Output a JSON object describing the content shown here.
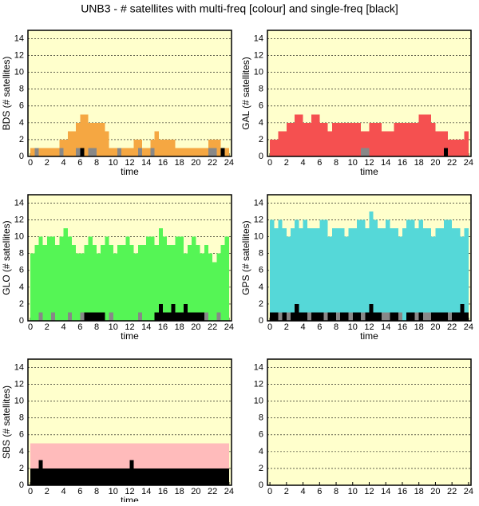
{
  "title": "UNB3 - # satellites with multi-freq [colour] and single-freq [black]",
  "chart_data": [
    {
      "type": "bar",
      "ylabel": "BDS (# satellites)",
      "xlabel": "time",
      "xlim": [
        -0.3,
        24.3
      ],
      "ylim": [
        0,
        15
      ],
      "xticks": [
        0,
        2,
        4,
        6,
        8,
        10,
        12,
        14,
        16,
        18,
        20,
        22,
        24
      ],
      "yticks": [
        0,
        2,
        4,
        6,
        8,
        10,
        12,
        14
      ],
      "grid": true,
      "x": [
        0,
        0.5,
        1,
        1.5,
        2,
        2.5,
        3,
        3.5,
        4,
        4.5,
        5,
        5.5,
        6,
        6.5,
        7,
        7.5,
        8,
        8.5,
        9,
        9.5,
        10,
        10.5,
        11,
        11.5,
        12,
        12.5,
        13,
        13.5,
        14,
        14.5,
        15,
        15.5,
        16,
        16.5,
        17,
        17.5,
        18,
        18.5,
        19,
        19.5,
        20,
        20.5,
        21,
        21.5,
        22,
        22.5,
        23,
        23.5
      ],
      "series": [
        {
          "color": "#f5a742",
          "values": [
            1,
            1,
            1,
            1,
            1,
            1,
            1,
            2,
            2,
            3,
            3,
            4,
            5,
            5,
            4,
            4,
            4,
            4,
            3,
            1,
            1,
            1,
            1,
            1,
            1,
            2,
            2,
            1,
            1,
            2,
            3,
            2,
            2,
            2,
            2,
            1,
            1,
            1,
            1,
            1,
            1,
            1,
            1,
            2,
            2,
            2,
            1,
            1
          ]
        },
        {
          "color": "#888888",
          "values": [
            0,
            1,
            0,
            0,
            0,
            0,
            0,
            1,
            0,
            0,
            0,
            1,
            1,
            0,
            1,
            1,
            0,
            0,
            0,
            0,
            0,
            1,
            0,
            0,
            0,
            0,
            1,
            0,
            0,
            1,
            0,
            0,
            0,
            0,
            0,
            0,
            0,
            0,
            0,
            0,
            0,
            0,
            0,
            1,
            1,
            0,
            1,
            0
          ]
        },
        {
          "color": "#000000",
          "values": [
            0,
            0,
            0,
            0,
            0,
            0,
            0,
            0,
            0,
            0,
            0,
            0,
            1,
            0,
            0,
            0,
            0,
            0,
            0,
            0,
            0,
            0,
            0,
            0,
            0,
            0,
            0,
            0,
            0,
            0,
            0,
            0,
            0,
            0,
            0,
            0,
            0,
            0,
            0,
            0,
            0,
            0,
            0,
            0,
            0,
            0,
            1,
            0
          ]
        }
      ]
    },
    {
      "type": "bar",
      "ylabel": "GAL (# satellites)",
      "xlabel": "time",
      "xlim": [
        -0.3,
        24.3
      ],
      "ylim": [
        0,
        15
      ],
      "xticks": [
        0,
        2,
        4,
        6,
        8,
        10,
        12,
        14,
        16,
        18,
        20,
        22,
        24
      ],
      "yticks": [
        0,
        2,
        4,
        6,
        8,
        10,
        12,
        14
      ],
      "grid": true,
      "x": [
        0,
        0.5,
        1,
        1.5,
        2,
        2.5,
        3,
        3.5,
        4,
        4.5,
        5,
        5.5,
        6,
        6.5,
        7,
        7.5,
        8,
        8.5,
        9,
        9.5,
        10,
        10.5,
        11,
        11.5,
        12,
        12.5,
        13,
        13.5,
        14,
        14.5,
        15,
        15.5,
        16,
        16.5,
        17,
        17.5,
        18,
        18.5,
        19,
        19.5,
        20,
        20.5,
        21,
        21.5,
        22,
        22.5,
        23,
        23.5
      ],
      "series": [
        {
          "color": "#f55050",
          "values": [
            2,
            2,
            3,
            3,
            4,
            4,
            5,
            5,
            4,
            4,
            5,
            5,
            4,
            4,
            3,
            4,
            4,
            4,
            4,
            4,
            4,
            4,
            3,
            3,
            4,
            4,
            4,
            3,
            3,
            3,
            4,
            4,
            4,
            4,
            4,
            4,
            5,
            5,
            5,
            4,
            3,
            3,
            3,
            2,
            2,
            2,
            2,
            3
          ]
        },
        {
          "color": "#888888",
          "values": [
            0,
            0,
            0,
            0,
            0,
            0,
            0,
            0,
            0,
            0,
            0,
            0,
            0,
            0,
            0,
            0,
            0,
            0,
            0,
            0,
            0,
            0,
            1,
            1,
            0,
            0,
            0,
            0,
            0,
            0,
            0,
            0,
            0,
            0,
            0,
            0,
            0,
            0,
            0,
            0,
            0,
            0,
            0,
            0,
            0,
            0,
            0,
            0
          ]
        },
        {
          "color": "#000000",
          "values": [
            0,
            0,
            0,
            0,
            0,
            0,
            0,
            0,
            0,
            0,
            0,
            0,
            0,
            0,
            0,
            0,
            0,
            0,
            0,
            0,
            0,
            0,
            0,
            0,
            0,
            0,
            0,
            0,
            0,
            0,
            0,
            0,
            0,
            0,
            0,
            0,
            0,
            0,
            0,
            0,
            0,
            0,
            1,
            0,
            0,
            0,
            0,
            0
          ]
        }
      ]
    },
    {
      "type": "bar",
      "ylabel": "GLO (# satellites)",
      "xlabel": "time",
      "xlim": [
        -0.3,
        24.3
      ],
      "ylim": [
        0,
        15
      ],
      "xticks": [
        0,
        2,
        4,
        6,
        8,
        10,
        12,
        14,
        16,
        18,
        20,
        22,
        24
      ],
      "yticks": [
        0,
        2,
        4,
        6,
        8,
        10,
        12,
        14
      ],
      "grid": true,
      "x": [
        0,
        0.5,
        1,
        1.5,
        2,
        2.5,
        3,
        3.5,
        4,
        4.5,
        5,
        5.5,
        6,
        6.5,
        7,
        7.5,
        8,
        8.5,
        9,
        9.5,
        10,
        10.5,
        11,
        11.5,
        12,
        12.5,
        13,
        13.5,
        14,
        14.5,
        15,
        15.5,
        16,
        16.5,
        17,
        17.5,
        18,
        18.5,
        19,
        19.5,
        20,
        20.5,
        21,
        21.5,
        22,
        22.5,
        23,
        23.5
      ],
      "series": [
        {
          "color": "#55f555",
          "values": [
            8,
            9,
            10,
            9,
            10,
            10,
            9,
            10,
            11,
            10,
            9,
            8,
            8,
            9,
            10,
            9,
            8,
            9,
            10,
            9,
            8,
            9,
            9,
            10,
            9,
            8,
            9,
            9,
            10,
            10,
            9,
            11,
            10,
            9,
            9,
            10,
            10,
            8,
            9,
            10,
            9,
            8,
            9,
            8,
            7,
            8,
            9,
            10
          ]
        },
        {
          "color": "#888888",
          "values": [
            0,
            0,
            1,
            0,
            0,
            1,
            0,
            0,
            0,
            1,
            0,
            0,
            1,
            0,
            0,
            0,
            0,
            0,
            0,
            1,
            0,
            0,
            0,
            0,
            0,
            0,
            1,
            0,
            0,
            0,
            0,
            0,
            0,
            0,
            0,
            0,
            0,
            0,
            0,
            0,
            0,
            0,
            1,
            0,
            0,
            1,
            0,
            0
          ]
        },
        {
          "color": "#000000",
          "values": [
            0,
            0,
            0,
            0,
            0,
            0,
            0,
            0,
            0,
            0,
            0,
            0,
            0,
            1,
            1,
            1,
            1,
            1,
            0,
            0,
            0,
            0,
            0,
            0,
            0,
            0,
            0,
            0,
            0,
            0,
            1,
            2,
            1,
            1,
            2,
            1,
            1,
            2,
            1,
            1,
            1,
            1,
            0,
            0,
            0,
            0,
            0,
            0
          ]
        }
      ]
    },
    {
      "type": "bar",
      "ylabel": "GPS (# satellites)",
      "xlabel": "time",
      "xlim": [
        -0.3,
        24.3
      ],
      "ylim": [
        0,
        15
      ],
      "xticks": [
        0,
        2,
        4,
        6,
        8,
        10,
        12,
        14,
        16,
        18,
        20,
        22,
        24
      ],
      "yticks": [
        0,
        2,
        4,
        6,
        8,
        10,
        12,
        14
      ],
      "grid": true,
      "x": [
        0,
        0.5,
        1,
        1.5,
        2,
        2.5,
        3,
        3.5,
        4,
        4.5,
        5,
        5.5,
        6,
        6.5,
        7,
        7.5,
        8,
        8.5,
        9,
        9.5,
        10,
        10.5,
        11,
        11.5,
        12,
        12.5,
        13,
        13.5,
        14,
        14.5,
        15,
        15.5,
        16,
        16.5,
        17,
        17.5,
        18,
        18.5,
        19,
        19.5,
        20,
        20.5,
        21,
        21.5,
        22,
        22.5,
        23,
        23.5
      ],
      "series": [
        {
          "color": "#55d8d8",
          "values": [
            12,
            11,
            12,
            11,
            10,
            11,
            12,
            11,
            12,
            11,
            11,
            11,
            12,
            12,
            10,
            11,
            11,
            11,
            10,
            11,
            11,
            12,
            12,
            11,
            13,
            12,
            11,
            11,
            12,
            11,
            11,
            10,
            11,
            12,
            12,
            11,
            12,
            11,
            11,
            10,
            11,
            11,
            12,
            12,
            11,
            11,
            10,
            11
          ]
        },
        {
          "color": "#888888",
          "values": [
            0,
            0,
            1,
            0,
            1,
            0,
            0,
            0,
            0,
            1,
            0,
            0,
            0,
            1,
            0,
            0,
            1,
            0,
            0,
            1,
            0,
            0,
            1,
            0,
            0,
            0,
            0,
            1,
            1,
            0,
            0,
            1,
            0,
            0,
            0,
            1,
            0,
            1,
            1,
            0,
            0,
            0,
            0,
            1,
            0,
            0,
            0,
            0
          ]
        },
        {
          "color": "#000000",
          "values": [
            1,
            1,
            0,
            1,
            0,
            1,
            2,
            1,
            1,
            0,
            1,
            1,
            1,
            0,
            1,
            1,
            0,
            1,
            1,
            0,
            1,
            1,
            0,
            1,
            2,
            1,
            1,
            0,
            0,
            1,
            1,
            0,
            0,
            1,
            1,
            0,
            1,
            0,
            0,
            1,
            1,
            1,
            1,
            0,
            1,
            1,
            2,
            1
          ]
        }
      ]
    },
    {
      "type": "bar",
      "ylabel": "SBS (# satellites)",
      "xlabel": "time",
      "xlim": [
        -0.3,
        24.3
      ],
      "ylim": [
        0,
        15
      ],
      "xticks": [
        0,
        2,
        4,
        6,
        8,
        10,
        12,
        14,
        16,
        18,
        20,
        22,
        24
      ],
      "yticks": [
        0,
        2,
        4,
        6,
        8,
        10,
        12,
        14
      ],
      "grid": true,
      "x": [
        0,
        0.5,
        1,
        1.5,
        2,
        2.5,
        3,
        3.5,
        4,
        4.5,
        5,
        5.5,
        6,
        6.5,
        7,
        7.5,
        8,
        8.5,
        9,
        9.5,
        10,
        10.5,
        11,
        11.5,
        12,
        12.5,
        13,
        13.5,
        14,
        14.5,
        15,
        15.5,
        16,
        16.5,
        17,
        17.5,
        18,
        18.5,
        19,
        19.5,
        20,
        20.5,
        21,
        21.5,
        22,
        22.5,
        23,
        23.5
      ],
      "series": [
        {
          "color": "#ffbbbb",
          "values": [
            5,
            5,
            5,
            5,
            5,
            5,
            5,
            5,
            5,
            5,
            5,
            5,
            5,
            5,
            5,
            5,
            5,
            5,
            5,
            5,
            5,
            5,
            5,
            5,
            5,
            5,
            5,
            5,
            5,
            5,
            5,
            5,
            5,
            5,
            5,
            5,
            5,
            5,
            5,
            5,
            5,
            5,
            5,
            5,
            5,
            5,
            5,
            5
          ]
        },
        {
          "color": "#000000",
          "values": [
            2,
            2,
            3,
            2,
            2,
            2,
            2,
            2,
            2,
            2,
            2,
            2,
            2,
            2,
            2,
            2,
            2,
            2,
            2,
            2,
            2,
            2,
            2,
            2,
            3,
            2,
            2,
            2,
            2,
            2,
            2,
            2,
            2,
            2,
            2,
            2,
            2,
            2,
            2,
            2,
            2,
            2,
            2,
            2,
            2,
            2,
            2,
            2
          ]
        }
      ]
    },
    {
      "type": "bar",
      "xlim": [
        -0.3,
        24.3
      ],
      "ylim": [
        0,
        15
      ],
      "xticks": [
        0,
        2,
        4,
        6,
        8,
        10,
        12,
        14,
        16,
        18,
        20,
        22,
        24
      ],
      "yticks": [
        0,
        2,
        4,
        6,
        8,
        10,
        12,
        14
      ],
      "grid": true,
      "x": [],
      "series": []
    }
  ]
}
